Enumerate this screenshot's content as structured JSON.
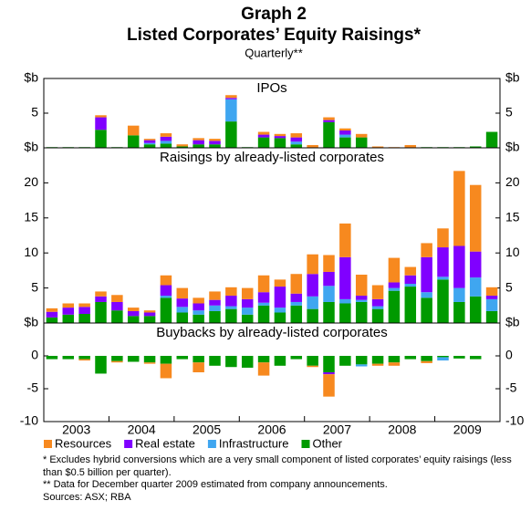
{
  "title_line1": "Graph 2",
  "title": "Listed Corporates’ Equity Raisings*",
  "subtitle": "Quarterly**",
  "years": [
    "2003",
    "2004",
    "2005",
    "2006",
    "2007",
    "2008",
    "2009"
  ],
  "notes": [
    "*   Excludes hybrid conversions which are a very small component of listed corporates’ equity raisings (less than $0.5 billion per quarter).",
    "** Data for December quarter 2009 estimated from company announcements."
  ],
  "sources": "Sources: ASX; RBA",
  "chart_data": [
    {
      "type": "bar",
      "stacked": true,
      "title": "IPOs",
      "ylim": [
        0,
        10
      ],
      "yticks": [
        {
          "value": 0,
          "label": "$b"
        },
        5,
        {
          "value": 10,
          "label": "$b"
        }
      ],
      "series": [
        {
          "name": "Other",
          "color": "#009a00",
          "values": [
            0.1,
            0.1,
            0.1,
            2.6,
            0.1,
            1.8,
            0.5,
            0.6,
            0.2,
            0.5,
            0.5,
            3.8,
            0.1,
            1.5,
            1.4,
            0.5,
            0,
            3.7,
            1.5,
            1.5,
            0,
            0,
            0,
            0.1,
            0.1,
            0.1,
            0.2,
            2.3
          ]
        },
        {
          "name": "Infrastructure",
          "color": "#3fa6f0",
          "values": [
            0,
            0,
            0,
            0,
            0,
            0,
            0.2,
            0.4,
            0,
            0,
            0,
            3.2,
            0,
            0,
            0,
            0.4,
            0,
            0,
            0.4,
            0,
            0,
            0,
            0,
            0,
            0,
            0,
            0,
            0
          ]
        },
        {
          "name": "Real estate",
          "color": "#8000ff",
          "values": [
            0,
            0,
            0,
            1.8,
            0,
            0,
            0.4,
            0.6,
            0,
            0.6,
            0.5,
            0.2,
            0,
            0.4,
            0.3,
            0.6,
            0,
            0.3,
            0.6,
            0,
            0,
            0,
            0,
            0,
            0,
            0,
            0,
            0
          ]
        },
        {
          "name": "Resources",
          "color": "#f7891f",
          "values": [
            0,
            0,
            0,
            0.3,
            0,
            1.4,
            0.2,
            0.5,
            0.3,
            0.3,
            0.3,
            0.4,
            0,
            0.4,
            0.3,
            0.6,
            0.4,
            0.4,
            0.3,
            0.5,
            0.2,
            0.1,
            0.4,
            0,
            0,
            0,
            0,
            0
          ]
        }
      ]
    },
    {
      "type": "bar",
      "stacked": true,
      "title": "Raisings by already-listed corporates",
      "ylim": [
        0,
        25
      ],
      "yticks": [
        {
          "value": 0,
          "label": "$b"
        },
        5,
        10,
        15,
        20
      ],
      "series": [
        {
          "name": "Other",
          "color": "#009a00",
          "values": [
            0.8,
            1.2,
            1.3,
            3.0,
            1.8,
            1.0,
            1.0,
            3.6,
            1.5,
            1.2,
            1.7,
            2.0,
            1.2,
            2.5,
            1.5,
            2.5,
            2.0,
            3.0,
            2.8,
            3.0,
            2.0,
            4.6,
            5.2,
            3.6,
            6.2,
            3.0,
            3.8,
            1.7
          ]
        },
        {
          "name": "Infrastructure",
          "color": "#3fa6f0",
          "values": [
            0,
            0,
            0,
            0,
            0,
            0,
            0,
            0.3,
            0.8,
            0.6,
            0.8,
            0.4,
            1.0,
            0.4,
            0.7,
            0.5,
            1.8,
            2.3,
            0.6,
            0.3,
            0.4,
            0.4,
            0.4,
            0.8,
            0.4,
            2.0,
            2.7,
            1.7
          ]
        },
        {
          "name": "Real estate",
          "color": "#8000ff",
          "values": [
            0.8,
            1.0,
            1.0,
            0.8,
            1.2,
            0.7,
            0.5,
            1.5,
            1.2,
            1.0,
            0.8,
            1.5,
            1.2,
            1.5,
            3.0,
            1.2,
            3.2,
            2.0,
            6.0,
            0.6,
            1.0,
            0.8,
            1.2,
            5.0,
            4.2,
            6.0,
            3.7,
            0.5
          ]
        },
        {
          "name": "Resources",
          "color": "#f7891f",
          "values": [
            0.5,
            0.6,
            0.5,
            0.7,
            1.0,
            0.5,
            0.3,
            1.4,
            1.5,
            0.8,
            1.2,
            1.2,
            1.6,
            2.4,
            1.0,
            2.8,
            2.8,
            2.4,
            4.8,
            3.0,
            2.0,
            3.5,
            1.2,
            2.0,
            2.7,
            10.7,
            9.5,
            1.2
          ]
        }
      ]
    },
    {
      "type": "bar",
      "stacked": true,
      "title": "Buybacks by already-listed corporates",
      "ylim": [
        -10,
        5
      ],
      "yticks": [
        -10,
        -5,
        0
      ],
      "series": [
        {
          "name": "Other",
          "color": "#009a00",
          "values": [
            -0.5,
            -0.5,
            -0.5,
            -2.7,
            -0.8,
            -0.9,
            -1.0,
            -1.2,
            -0.5,
            -1.0,
            -1.5,
            -1.7,
            -1.8,
            -1.0,
            -1.5,
            -0.5,
            -1.5,
            -2.5,
            -1.5,
            -1.3,
            -1.2,
            -1.0,
            -0.5,
            -0.8,
            -0.2,
            -0.4,
            -0.5,
            0
          ]
        },
        {
          "name": "Infrastructure",
          "color": "#3fa6f0",
          "values": [
            0,
            0,
            0,
            0,
            0,
            0,
            0,
            0,
            0,
            0,
            0,
            0,
            0,
            0,
            0,
            0,
            0,
            0,
            0,
            -0.3,
            0,
            0,
            0,
            0,
            -0.5,
            0,
            0,
            0
          ]
        },
        {
          "name": "Real estate",
          "color": "#8000ff",
          "values": [
            0,
            0,
            0,
            0,
            0,
            0,
            0,
            0,
            0,
            0,
            0,
            0,
            0,
            0,
            0,
            0,
            0,
            -0.3,
            0,
            0,
            0,
            0,
            0,
            0,
            0,
            0,
            0,
            0
          ]
        },
        {
          "name": "Resources",
          "color": "#f7891f",
          "values": [
            0,
            0,
            -0.2,
            0,
            -0.2,
            0,
            -0.2,
            -2.2,
            0,
            -1.5,
            0,
            0,
            0,
            -2.0,
            0,
            0,
            -0.2,
            -3.4,
            0,
            0,
            -0.3,
            -0.5,
            0,
            -0.3,
            0,
            0,
            0,
            0
          ]
        }
      ]
    }
  ]
}
